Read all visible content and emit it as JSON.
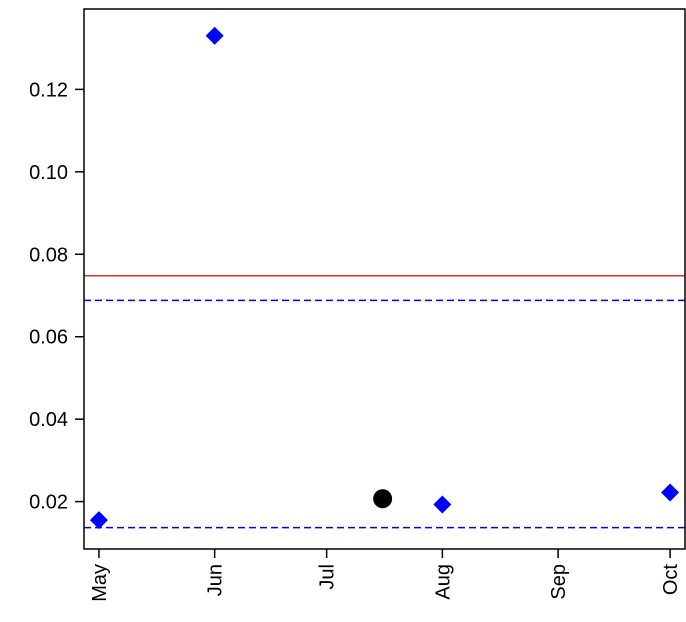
{
  "chart_data": {
    "type": "scatter",
    "title": "",
    "xlabel": "",
    "ylabel": "",
    "x_axis": {
      "ticks": [
        {
          "label": "May",
          "value": "2000-05-01"
        },
        {
          "label": "Jun",
          "value": "2000-06-01"
        },
        {
          "label": "Jul",
          "value": "2000-07-01"
        },
        {
          "label": "Aug",
          "value": "2000-08-01"
        },
        {
          "label": "Sep",
          "value": "2000-09-01"
        },
        {
          "label": "Oct",
          "value": "2000-10-01"
        }
      ],
      "range": [
        "2000-04-27",
        "2000-10-05"
      ]
    },
    "y_axis": {
      "ticks": [
        {
          "label": "0.02",
          "value": 0.02
        },
        {
          "label": "0.04",
          "value": 0.04
        },
        {
          "label": "0.06",
          "value": 0.06
        },
        {
          "label": "0.08",
          "value": 0.08
        },
        {
          "label": "0.10",
          "value": 0.1
        },
        {
          "label": "0.12",
          "value": 0.12
        }
      ],
      "range": [
        0.0085,
        0.1395
      ]
    },
    "series": [
      {
        "marker": "diamond",
        "color": "#0000ff",
        "points": [
          {
            "x": "2000-05-01",
            "y": 0.0155
          },
          {
            "x": "2000-06-01",
            "y": 0.133
          },
          {
            "x": "2000-08-01",
            "y": 0.0193
          },
          {
            "x": "2000-10-01",
            "y": 0.0222
          }
        ]
      },
      {
        "marker": "circle",
        "color": "#000000",
        "points": [
          {
            "x": "2000-07-16",
            "y": 0.0207
          }
        ]
      }
    ],
    "reference_lines": [
      {
        "y": 0.0748,
        "color": "#e03030",
        "style": "solid"
      },
      {
        "y": 0.0688,
        "color": "#0000ff",
        "style": "dashed"
      },
      {
        "y": 0.0137,
        "color": "#0000ff",
        "style": "dashed"
      }
    ],
    "grid": false,
    "legend": "none"
  }
}
